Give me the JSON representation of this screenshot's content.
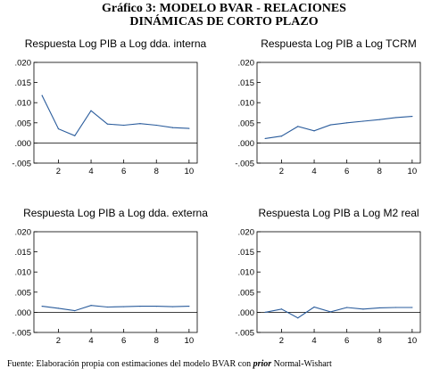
{
  "figure": {
    "title_line1": "Gráfico 3: MODELO BVAR - RELACIONES",
    "title_line2": "DINÁMICAS DE CORTO PLAZO"
  },
  "source": {
    "prefix": "Fuente:  Elaboración propia con estimaciones del modelo BVAR con ",
    "emphasis": "prior",
    "suffix": " Normal-Wishart"
  },
  "colors": {
    "line": "#2a5c9c",
    "axis": "#000000"
  },
  "chart_data": [
    {
      "type": "line",
      "title": "Respuesta Log PIB a Log dda. interna",
      "x": [
        1,
        2,
        3,
        4,
        5,
        6,
        7,
        8,
        9,
        10
      ],
      "values": [
        0.0118,
        0.0035,
        0.0018,
        0.008,
        0.0047,
        0.0044,
        0.0048,
        0.0044,
        0.0038,
        0.0036
      ],
      "ylim": [
        -0.005,
        0.02
      ],
      "yticks": [
        ".020",
        ".015",
        ".010",
        ".005",
        ".000",
        "-.005"
      ],
      "yticks_values": [
        0.02,
        0.015,
        0.01,
        0.005,
        0.0,
        -0.005
      ],
      "xticks": [
        "2",
        "4",
        "6",
        "8",
        "10"
      ],
      "xticks_values": [
        2,
        4,
        6,
        8,
        10
      ]
    },
    {
      "type": "line",
      "title": "Respuesta Log PIB a Log TCRM",
      "x": [
        1,
        2,
        3,
        4,
        5,
        6,
        7,
        8,
        9,
        10
      ],
      "values": [
        0.0011,
        0.0017,
        0.0041,
        0.003,
        0.0045,
        0.005,
        0.0054,
        0.0058,
        0.0063,
        0.0066
      ],
      "ylim": [
        -0.005,
        0.02
      ],
      "yticks": [
        ".020",
        ".015",
        ".010",
        ".005",
        ".000",
        "-.005"
      ],
      "yticks_values": [
        0.02,
        0.015,
        0.01,
        0.005,
        0.0,
        -0.005
      ],
      "xticks": [
        "2",
        "4",
        "6",
        "8",
        "10"
      ],
      "xticks_values": [
        2,
        4,
        6,
        8,
        10
      ]
    },
    {
      "type": "line",
      "title": "Respuesta Log PIB a Log dda. externa",
      "x": [
        1,
        2,
        3,
        4,
        5,
        6,
        7,
        8,
        9,
        10
      ],
      "values": [
        0.0015,
        0.001,
        0.0004,
        0.0017,
        0.0013,
        0.0014,
        0.0015,
        0.0015,
        0.0014,
        0.0015
      ],
      "ylim": [
        -0.005,
        0.02
      ],
      "yticks": [
        ".020",
        ".015",
        ".010",
        ".005",
        ".000",
        "-.005"
      ],
      "yticks_values": [
        0.02,
        0.015,
        0.01,
        0.005,
        0.0,
        -0.005
      ],
      "xticks": [
        "2",
        "4",
        "6",
        "8",
        "10"
      ],
      "xticks_values": [
        2,
        4,
        6,
        8,
        10
      ]
    },
    {
      "type": "line",
      "title": "Respuesta Log PIB a Log M2 real",
      "x": [
        1,
        2,
        3,
        4,
        5,
        6,
        7,
        8,
        9,
        10
      ],
      "values": [
        0.0,
        0.0008,
        -0.0014,
        0.0013,
        0.0001,
        0.0012,
        0.0008,
        0.0011,
        0.0012,
        0.0012
      ],
      "ylim": [
        -0.005,
        0.02
      ],
      "yticks": [
        ".020",
        ".015",
        ".010",
        ".005",
        ".000",
        "-.005"
      ],
      "yticks_values": [
        0.02,
        0.015,
        0.01,
        0.005,
        0.0,
        -0.005
      ],
      "xticks": [
        "2",
        "4",
        "6",
        "8",
        "10"
      ],
      "xticks_values": [
        2,
        4,
        6,
        8,
        10
      ]
    }
  ]
}
